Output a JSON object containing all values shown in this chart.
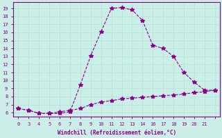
{
  "xlabel": "Windchill (Refroidissement éolien,°C)",
  "bg_color": "#cceee8",
  "line_color": "#8b008b",
  "xvals": [
    0,
    1,
    2,
    3,
    4,
    5,
    6,
    7,
    8,
    9,
    10,
    11,
    12,
    13,
    14,
    15,
    16,
    17,
    18,
    19
  ],
  "xlabels": [
    "0",
    "3",
    "4",
    "5",
    "6",
    "7",
    "8",
    "9",
    "10",
    "11",
    "12",
    "13",
    "14",
    "16",
    "17",
    "18",
    "19",
    "20",
    "21",
    ""
  ],
  "line1_y": [
    6.5,
    6.3,
    5.9,
    5.9,
    5.9,
    6.1,
    9.5,
    13.1,
    16.1,
    19.0,
    19.1,
    18.8,
    17.5,
    14.4,
    14.0,
    13.0,
    11.0,
    9.8,
    8.8,
    8.8
  ],
  "line2_y": [
    6.5,
    6.3,
    5.9,
    5.9,
    6.1,
    6.3,
    6.5,
    7.0,
    7.3,
    7.5,
    7.7,
    7.8,
    7.9,
    8.0,
    8.1,
    8.2,
    8.3,
    8.5,
    8.6,
    8.8
  ],
  "yticks": [
    6,
    7,
    8,
    9,
    10,
    11,
    12,
    13,
    14,
    15,
    16,
    17,
    18,
    19
  ],
  "ylim": [
    5.5,
    19.8
  ],
  "xlim": [
    -0.5,
    19.5
  ]
}
